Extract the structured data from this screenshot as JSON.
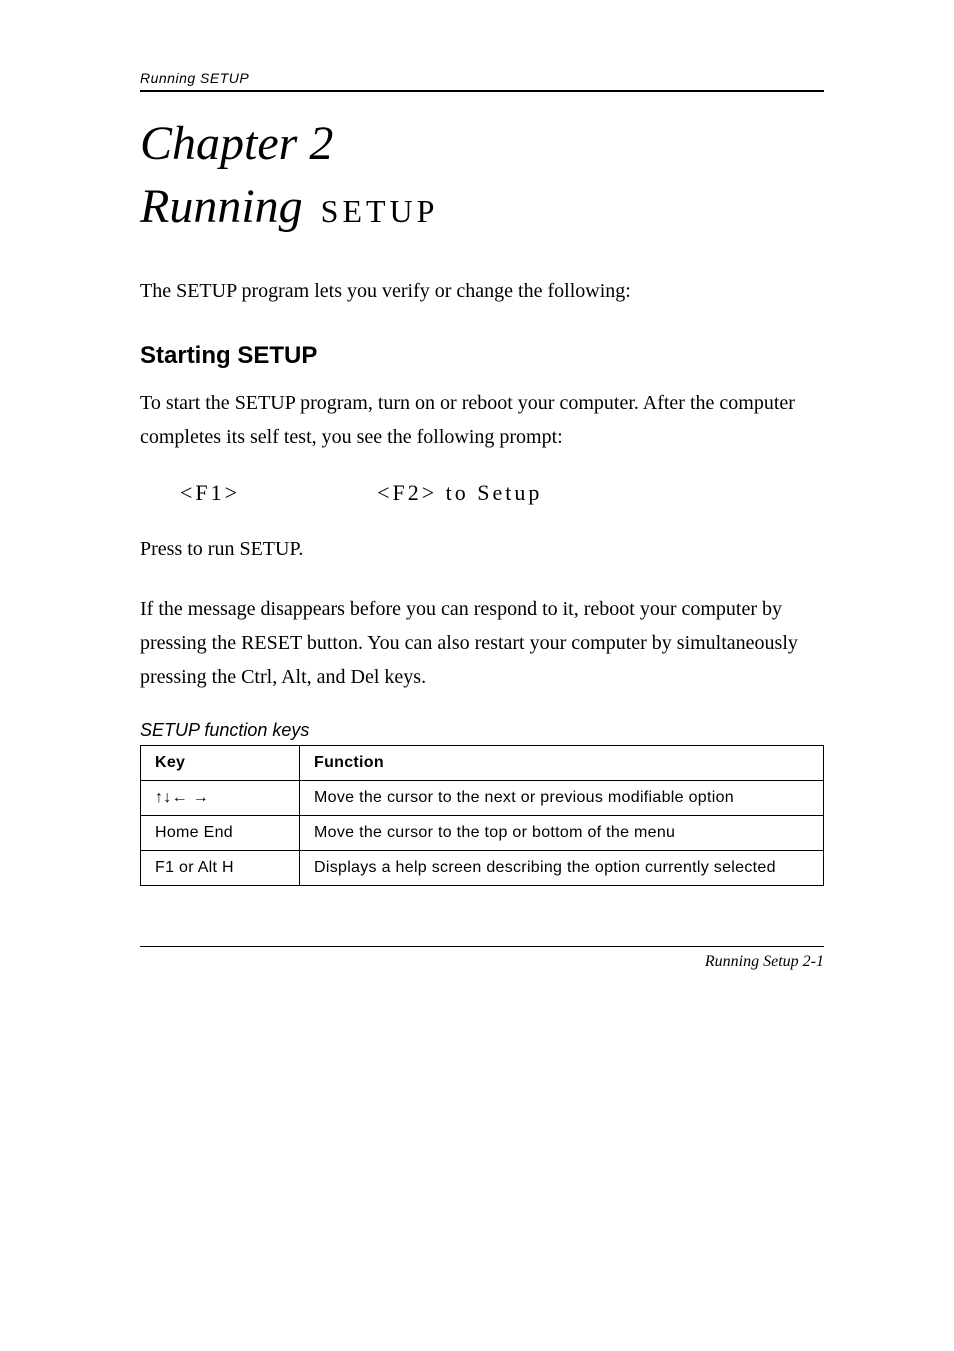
{
  "header": {
    "running_head": "Running SETUP"
  },
  "chapter": {
    "number": "Chapter 2",
    "title_prefix": "Running",
    "title_setup": "SETUP"
  },
  "paragraphs": {
    "intro": "The SETUP program lets you verify or change the following:",
    "starting_para": "To start the SETUP program, turn on or reboot your computer. After the computer completes its self test, you see the following prompt:",
    "press_line_before": "Press ",
    "press_line_after": " to run SETUP.",
    "note_para": "If the message disappears before you can respond to it, reboot your computer by pressing the RESET button. You can also restart your computer by simultaneously pressing the Ctrl, Alt, and Del keys."
  },
  "section_headings": {
    "starting": "Starting SETUP"
  },
  "prompt": {
    "f1": "<F1>",
    "f2": "<F2> to Setup"
  },
  "list": {
    "items": []
  },
  "table": {
    "caption": "SETUP function keys",
    "headers": {
      "key": "Key",
      "function": "Function"
    },
    "rows": [
      {
        "key": "↑↓← →",
        "func": "Move the cursor to the next or previous modifiable option"
      },
      {
        "key": "Home End",
        "func": "Move the cursor to the top or bottom of the menu"
      },
      {
        "key": "F1 or Alt H",
        "func": "Displays a help screen describing the option currently selected"
      }
    ]
  },
  "footer": {
    "text": "Running Setup  2-1"
  },
  "colors": {
    "text": "#000000",
    "background": "#ffffff",
    "border": "#000000"
  },
  "typography": {
    "body_font": "Georgia serif",
    "ui_font": "Arial sans-serif",
    "chapter_size_pt": 36,
    "body_size_pt": 15,
    "table_size_pt": 12
  }
}
